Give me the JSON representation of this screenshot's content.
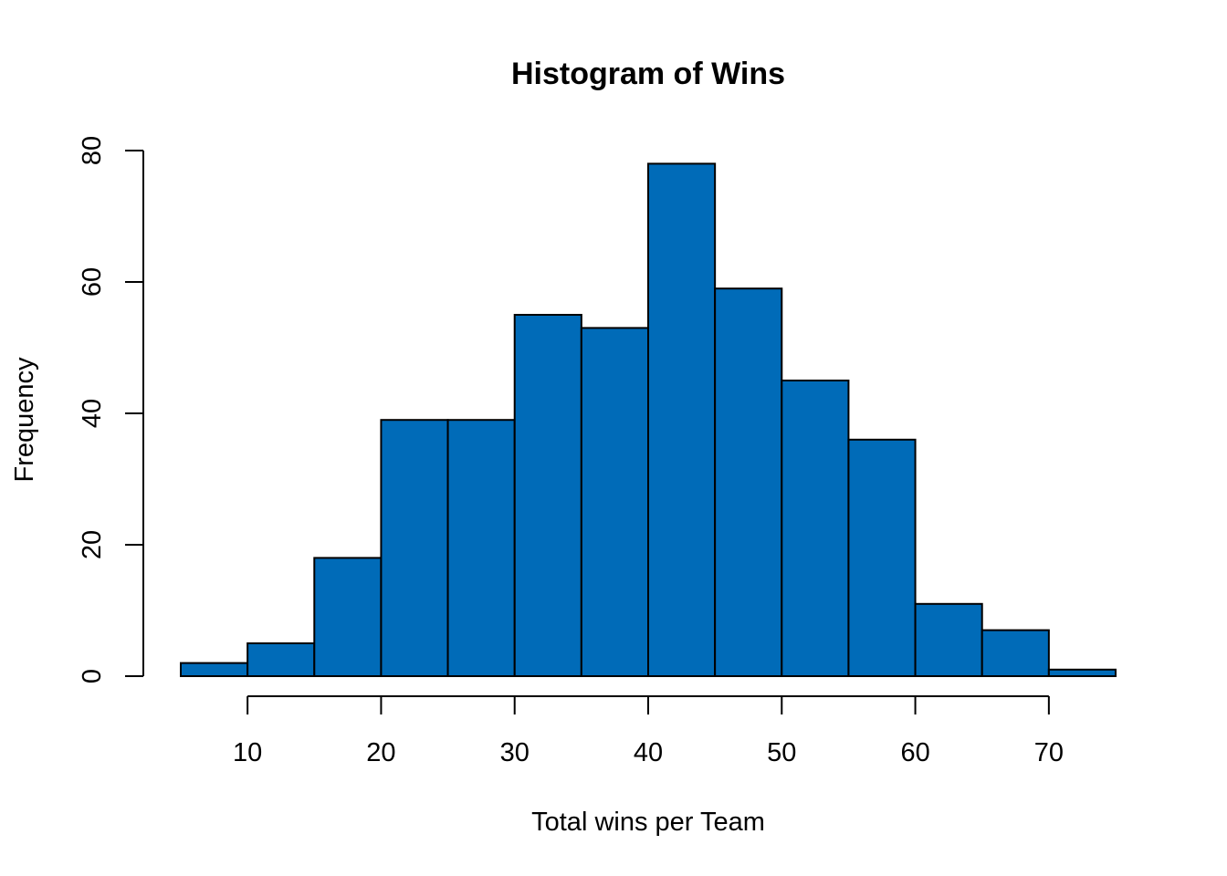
{
  "chart_data": {
    "type": "bar",
    "title": "Histogram of Wins",
    "xlabel": "Total wins per Team",
    "ylabel": "Frequency",
    "bin_edges": [
      5,
      10,
      15,
      20,
      25,
      30,
      35,
      40,
      45,
      50,
      55,
      60,
      65,
      70,
      75
    ],
    "values": [
      2,
      5,
      18,
      39,
      39,
      55,
      53,
      78,
      59,
      45,
      36,
      11,
      7,
      1
    ],
    "xlim": [
      5,
      75
    ],
    "ylim": [
      0,
      80
    ],
    "x_ticks": [
      10,
      20,
      30,
      40,
      50,
      60,
      70
    ],
    "y_ticks": [
      0,
      20,
      40,
      60,
      80
    ],
    "bar_color": "#006BB8",
    "grid": false
  }
}
